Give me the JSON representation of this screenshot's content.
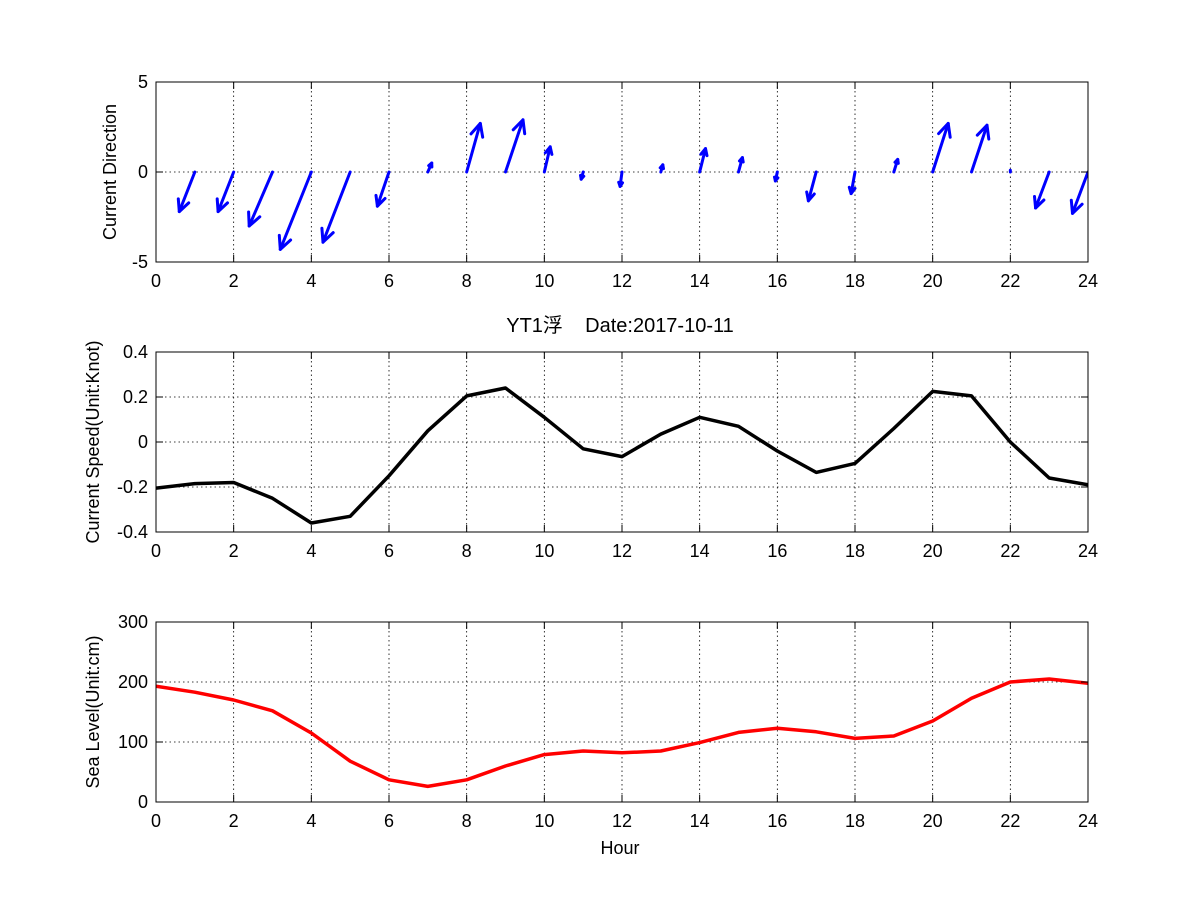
{
  "chart_data": [
    {
      "type": "quiver",
      "ylabel": "Current Direction",
      "xlabel": "",
      "xlim": [
        0,
        24
      ],
      "ylim": [
        -5,
        5
      ],
      "xticks": [
        0,
        2,
        4,
        6,
        8,
        10,
        12,
        14,
        16,
        18,
        20,
        22,
        24
      ],
      "yticks": [
        5,
        0,
        -5
      ],
      "grid": true,
      "color": "#0000ff",
      "x": [
        1,
        2,
        3,
        4,
        5,
        6,
        7,
        8,
        9,
        10,
        11,
        12,
        13,
        14,
        15,
        16,
        17,
        18,
        19,
        20,
        21,
        22,
        23,
        24
      ],
      "u": [
        -0.4,
        -0.4,
        -0.6,
        -0.8,
        -0.7,
        -0.3,
        0.1,
        0.35,
        0.45,
        0.15,
        -0.05,
        -0.05,
        0.05,
        0.15,
        0.1,
        -0.05,
        -0.2,
        -0.1,
        0.1,
        0.4,
        0.4,
        0.0,
        -0.35,
        -0.4
      ],
      "v": [
        -2.2,
        -2.2,
        -3.0,
        -4.3,
        -3.9,
        -1.9,
        0.5,
        2.7,
        2.9,
        1.4,
        -0.4,
        -0.8,
        0.4,
        1.3,
        0.8,
        -0.5,
        -1.6,
        -1.2,
        0.7,
        2.7,
        2.6,
        0.1,
        -2.0,
        -2.3
      ]
    },
    {
      "type": "line",
      "title": "YT1浮    Date:2017-10-11",
      "title_color": "#ff0000",
      "ylabel": "Current Speed(Unit:Knot)",
      "xlabel": "",
      "xlim": [
        0,
        24
      ],
      "ylim": [
        -0.4,
        0.4
      ],
      "xticks": [
        0,
        2,
        4,
        6,
        8,
        10,
        12,
        14,
        16,
        18,
        20,
        22,
        24
      ],
      "yticks": [
        0.4,
        0.2,
        0,
        -0.2,
        -0.4
      ],
      "ytick_labels": [
        "0.4",
        "0.2",
        "0",
        "-0.2",
        "-0.4"
      ],
      "grid": true,
      "color": "#000000",
      "x": [
        0,
        1,
        2,
        3,
        4,
        5,
        6,
        7,
        8,
        9,
        10,
        11,
        12,
        13,
        14,
        15,
        16,
        17,
        18,
        19,
        20,
        21,
        22,
        23,
        24
      ],
      "y": [
        -0.205,
        -0.185,
        -0.18,
        -0.25,
        -0.36,
        -0.33,
        -0.15,
        0.05,
        0.205,
        0.24,
        0.11,
        -0.03,
        -0.065,
        0.035,
        0.11,
        0.07,
        -0.04,
        -0.135,
        -0.095,
        0.06,
        0.225,
        0.205,
        0.0,
        -0.16,
        -0.19
      ]
    },
    {
      "type": "line",
      "ylabel": "Sea Level(Unit:cm)",
      "xlabel": "Hour",
      "xlim": [
        0,
        24
      ],
      "ylim": [
        0,
        300
      ],
      "xticks": [
        0,
        2,
        4,
        6,
        8,
        10,
        12,
        14,
        16,
        18,
        20,
        22,
        24
      ],
      "yticks": [
        300,
        200,
        100,
        0
      ],
      "grid": true,
      "color": "#ff0000",
      "x": [
        0,
        1,
        2,
        3,
        4,
        5,
        6,
        7,
        8,
        9,
        10,
        11,
        12,
        13,
        14,
        15,
        16,
        17,
        18,
        19,
        20,
        21,
        22,
        23,
        24
      ],
      "y": [
        193,
        183,
        170,
        152,
        115,
        68,
        37,
        26,
        37,
        60,
        79,
        85,
        82,
        85,
        99,
        116,
        123,
        117,
        106,
        110,
        135,
        173,
        200,
        205,
        198
      ]
    }
  ]
}
